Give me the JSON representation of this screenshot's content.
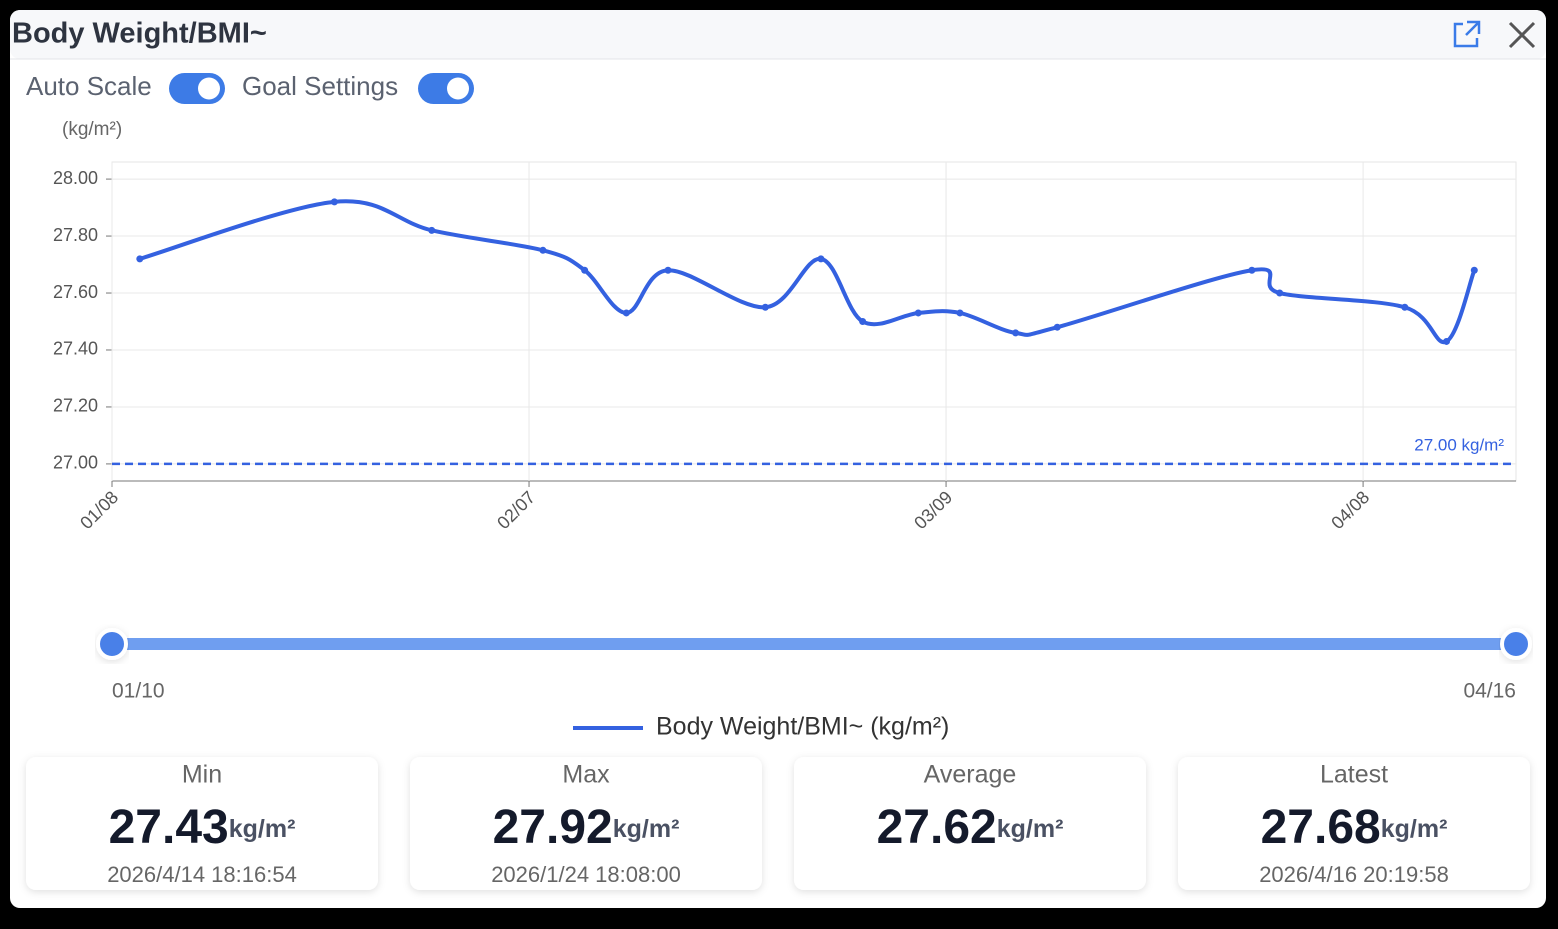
{
  "window_title": "Body Weight/BMI~",
  "toggles": [
    {
      "label": "Auto Scale",
      "on": true
    },
    {
      "label": "Goal Settings",
      "on": true
    }
  ],
  "chart_data": {
    "type": "line",
    "y_label": "(kg/m²)",
    "x": [
      "01/10",
      "01/24",
      "01/31",
      "02/08",
      "02/11",
      "02/14",
      "02/17",
      "02/24",
      "02/28",
      "03/03",
      "03/07",
      "03/10",
      "03/14",
      "03/17",
      "03/31",
      "04/02",
      "04/11",
      "04/14",
      "04/16"
    ],
    "series": [
      {
        "name": "Body Weight/BMI~ (kg/m²)",
        "color": "#3461e0",
        "values": [
          27.72,
          27.92,
          27.82,
          27.75,
          27.68,
          27.53,
          27.68,
          27.55,
          27.72,
          27.5,
          27.53,
          27.53,
          27.46,
          27.48,
          27.68,
          27.6,
          27.55,
          27.43,
          27.68
        ]
      }
    ],
    "xlim": [
      "01/08",
      "04/19"
    ],
    "xticks": [
      "01/08",
      "02/07",
      "03/09",
      "04/08"
    ],
    "ylim": [
      26.94,
      28.06
    ],
    "yticks": [
      {
        "value": 27,
        "label": "27.00"
      },
      {
        "value": 27.2,
        "label": "27.20"
      },
      {
        "value": 27.4,
        "label": "27.40"
      },
      {
        "value": 27.6,
        "label": "27.60"
      },
      {
        "value": 27.8,
        "label": "27.80"
      },
      {
        "value": 28,
        "label": "28.00"
      }
    ],
    "goal": {
      "value": 27,
      "label": "27.00 kg/m²"
    },
    "grid": true
  },
  "range_slider": {
    "start": "01/10",
    "end": "04/16"
  },
  "stats": [
    {
      "title": "Min",
      "value": "27.43",
      "unit": "kg/m²",
      "time": "2026/4/14 18:16:54"
    },
    {
      "title": "Max",
      "value": "27.92",
      "unit": "kg/m²",
      "time": "2026/1/24 18:08:00"
    },
    {
      "title": "Average",
      "value": "27.62",
      "unit": "kg/m²"
    },
    {
      "title": "Latest",
      "value": "27.68",
      "unit": "kg/m²",
      "time": "2026/4/16 20:19:58"
    }
  ]
}
